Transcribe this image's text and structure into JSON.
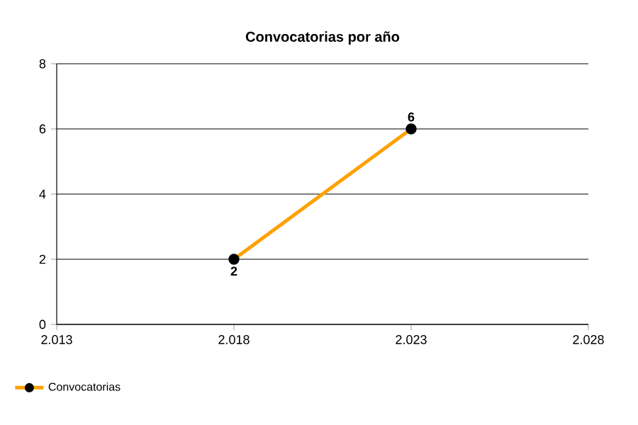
{
  "chart_data": {
    "type": "line",
    "title": "Convocatorias por año",
    "x": [
      2018,
      2023
    ],
    "series": [
      {
        "name": "Convocatorias",
        "color": "#ffa000",
        "values": [
          2,
          6
        ]
      }
    ],
    "xlim": [
      2013,
      2028
    ],
    "xticks": [
      {
        "value": 2013,
        "label": "2.013"
      },
      {
        "value": 2018,
        "label": "2.018"
      },
      {
        "value": 2023,
        "label": "2.023"
      },
      {
        "value": 2028,
        "label": "2.028"
      }
    ],
    "ylim": [
      0,
      8
    ],
    "yticks": [
      0,
      2,
      4,
      6,
      8
    ],
    "grid": "y",
    "legend": "bottom left",
    "marker": "circle",
    "line_style": "solid",
    "data_labels": true
  }
}
